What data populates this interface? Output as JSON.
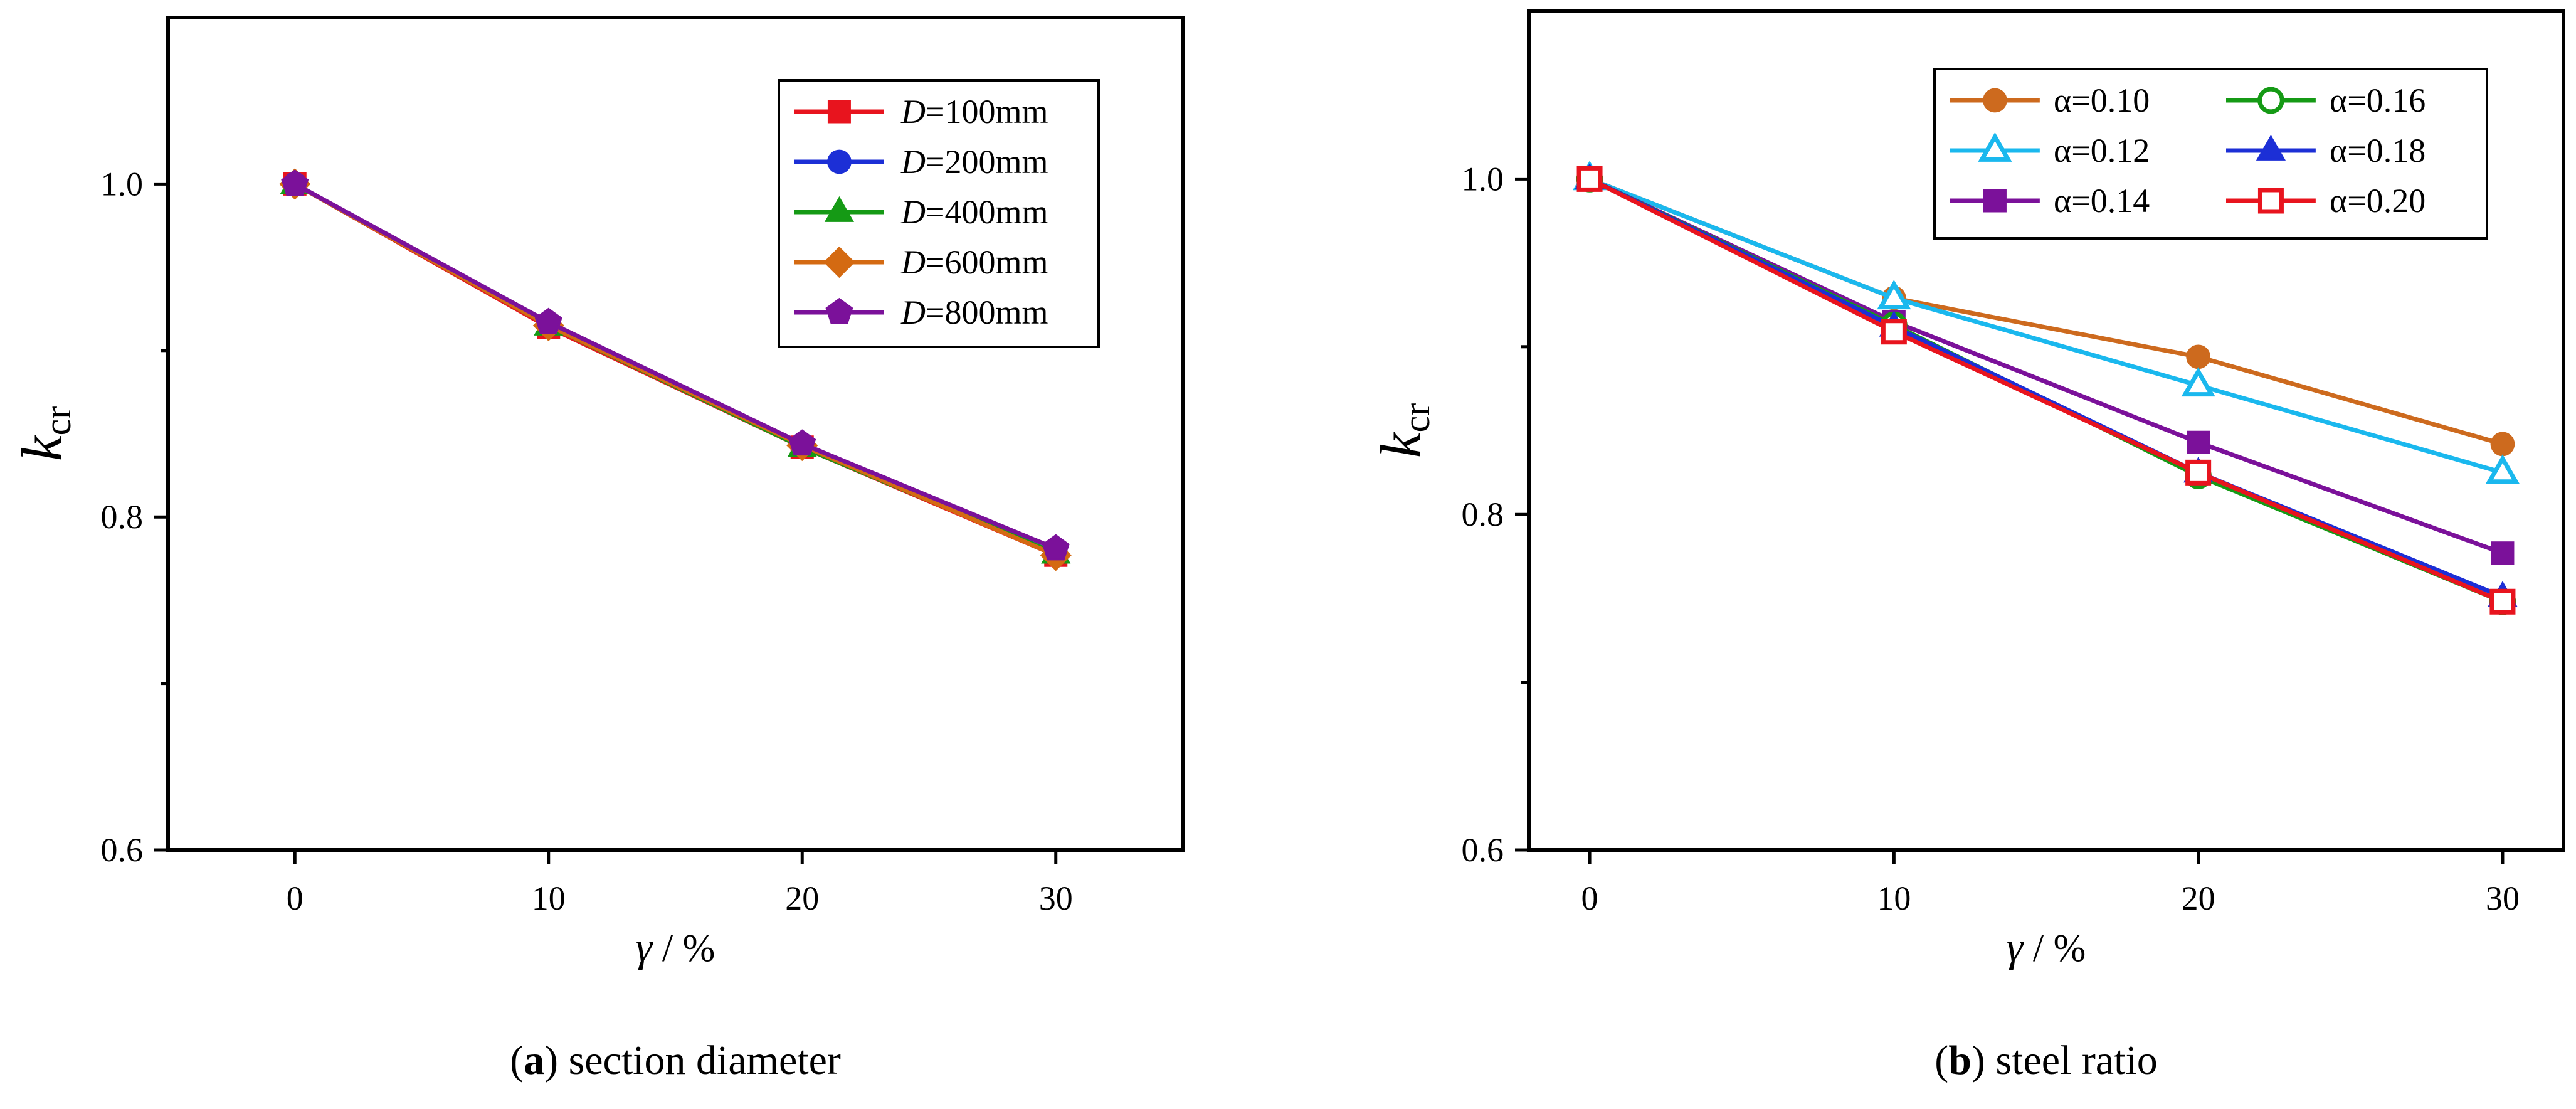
{
  "chart_data": [
    {
      "type": "line",
      "panel_id": "a",
      "caption_letter": "a",
      "caption_text": " section diameter",
      "xlabel_symbol": "γ",
      "xlabel_unit": " / %",
      "ylabel_symbol": "k",
      "ylabel_sub": "cr",
      "xlim": [
        -5,
        35
      ],
      "ylim": [
        0.6,
        1.1
      ],
      "x_ticks": [
        0,
        10,
        20,
        30
      ],
      "x_tick_labels": [
        "0",
        "10",
        "20",
        "30"
      ],
      "y_ticks": [
        0.6,
        0.8,
        1.0
      ],
      "y_tick_labels": [
        "0.6",
        "0.8",
        "1.0"
      ],
      "y_minor_ticks": [
        0.7,
        0.9
      ],
      "legend_position": "top-right",
      "legend_columns": 1,
      "x": [
        0,
        10,
        20,
        30
      ],
      "series": [
        {
          "name_italic": "D",
          "name_rest": "=100mm",
          "values": [
            1.0,
            0.914,
            0.842,
            0.777
          ],
          "color": "#e8141e",
          "marker": "square",
          "filled": true
        },
        {
          "name_italic": "D",
          "name_rest": "=200mm",
          "values": [
            1.0,
            0.916,
            0.843,
            0.778
          ],
          "color": "#1c2fd6",
          "marker": "circle",
          "filled": true
        },
        {
          "name_italic": "D",
          "name_rest": "=400mm",
          "values": [
            1.0,
            0.915,
            0.842,
            0.778
          ],
          "color": "#159a15",
          "marker": "triangle-up",
          "filled": true
        },
        {
          "name_italic": "D",
          "name_rest": "=600mm",
          "values": [
            1.0,
            0.915,
            0.843,
            0.777
          ],
          "color": "#d46a12",
          "marker": "diamond",
          "filled": true
        },
        {
          "name_italic": "D",
          "name_rest": "=800mm",
          "values": [
            1.0,
            0.917,
            0.844,
            0.781
          ],
          "color": "#7b119a",
          "marker": "pentagon",
          "filled": true
        }
      ]
    },
    {
      "type": "line",
      "panel_id": "b",
      "caption_letter": "b",
      "caption_text": " steel ratio",
      "xlabel_symbol": "γ",
      "xlabel_unit": " / %",
      "ylabel_symbol": "k",
      "ylabel_sub": "cr",
      "xlim": [
        -2,
        32
      ],
      "ylim": [
        0.6,
        1.1
      ],
      "x_ticks": [
        0,
        10,
        20,
        30
      ],
      "x_tick_labels": [
        "0",
        "10",
        "20",
        "30"
      ],
      "y_ticks": [
        0.6,
        0.8,
        1.0
      ],
      "y_tick_labels": [
        "0.6",
        "0.8",
        "1.0"
      ],
      "y_minor_ticks": [
        0.7,
        0.9
      ],
      "legend_position": "top-right",
      "legend_columns": 2,
      "x": [
        0,
        10,
        20,
        30
      ],
      "series": [
        {
          "name_italic": "",
          "name_rest": "α=0.10",
          "values": [
            1.0,
            0.929,
            0.894,
            0.842
          ],
          "color": "#cd6a1e",
          "marker": "circle",
          "filled": true
        },
        {
          "name_italic": "",
          "name_rest": "α=0.12",
          "values": [
            1.0,
            0.929,
            0.877,
            0.825
          ],
          "color": "#1ab8ee",
          "marker": "triangle-up",
          "filled": false
        },
        {
          "name_italic": "",
          "name_rest": "α=0.14",
          "values": [
            1.0,
            0.915,
            0.843,
            0.777
          ],
          "color": "#7b119a",
          "marker": "square",
          "filled": true
        },
        {
          "name_italic": "",
          "name_rest": "α=0.16",
          "values": [
            1.0,
            0.913,
            0.823,
            0.748
          ],
          "color": "#159a15",
          "marker": "circle",
          "filled": false
        },
        {
          "name_italic": "",
          "name_rest": "α=0.18",
          "values": [
            1.0,
            0.912,
            0.825,
            0.751
          ],
          "color": "#1c2fd6",
          "marker": "triangle-up",
          "filled": true
        },
        {
          "name_italic": "",
          "name_rest": "α=0.20",
          "values": [
            1.0,
            0.909,
            0.825,
            0.748
          ],
          "color": "#e8141e",
          "marker": "square",
          "filled": false
        }
      ]
    }
  ]
}
